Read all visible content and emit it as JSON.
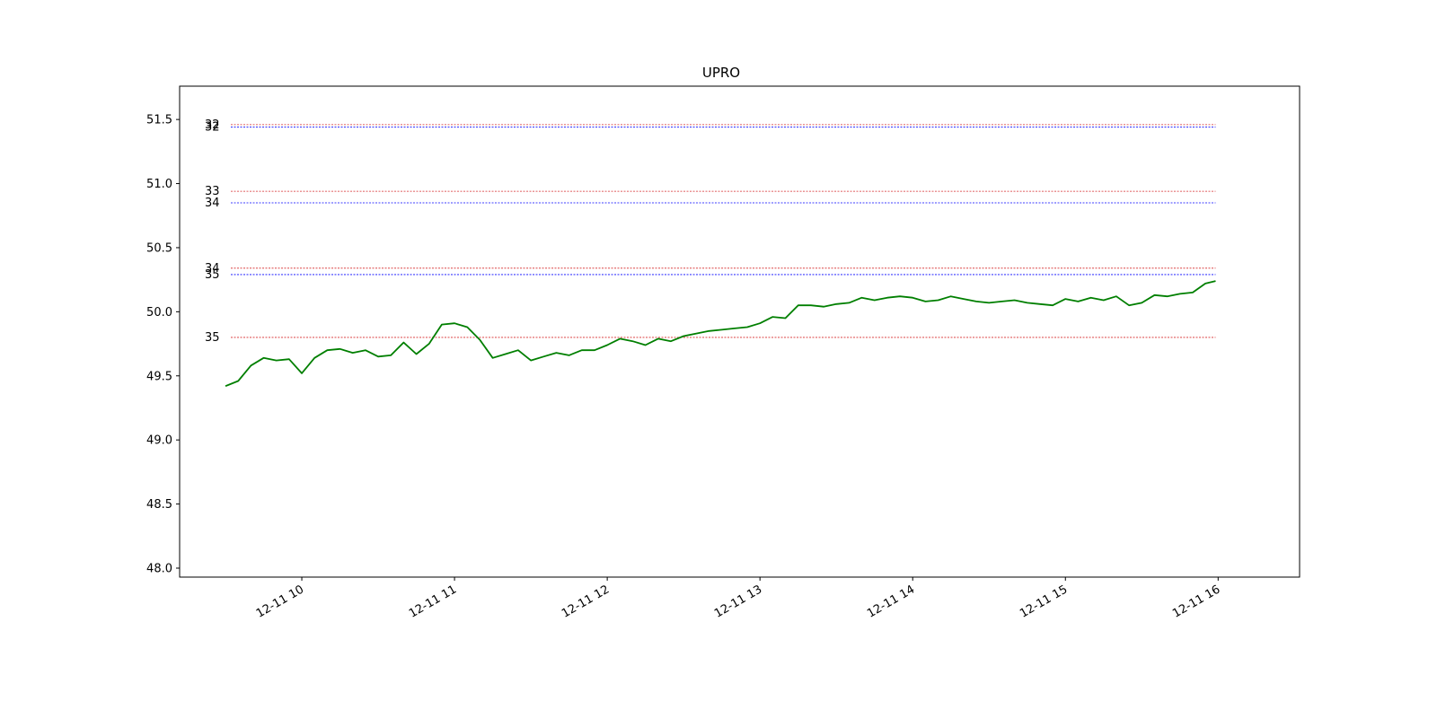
{
  "chart_data": {
    "type": "line",
    "title": "UPRO",
    "xlabel": "",
    "ylabel": "",
    "ylim": [
      47.93,
      51.76
    ],
    "xlim": [
      "2018-12-11 09:12",
      "2018-12-11 16:32"
    ],
    "x_tick_labels": [
      "12-11 10",
      "12-11 11",
      "12-11 12",
      "12-11 13",
      "12-11 14",
      "12-11 15",
      "12-11 16"
    ],
    "y_tick_labels": [
      "48.0",
      "48.5",
      "49.0",
      "49.5",
      "50.0",
      "50.5",
      "51.0",
      "51.5"
    ],
    "grid": false,
    "legend": "none",
    "line_color": "#007f00",
    "series": [
      {
        "x": [
          "2018-12-11 09:30",
          "2018-12-11 09:35",
          "2018-12-11 09:40",
          "2018-12-11 09:45",
          "2018-12-11 09:50",
          "2018-12-11 09:55",
          "2018-12-11 10:00",
          "2018-12-11 10:05",
          "2018-12-11 10:10",
          "2018-12-11 10:15",
          "2018-12-11 10:20",
          "2018-12-11 10:25",
          "2018-12-11 10:30",
          "2018-12-11 10:35",
          "2018-12-11 10:40",
          "2018-12-11 10:45",
          "2018-12-11 10:50",
          "2018-12-11 10:55",
          "2018-12-11 11:00",
          "2018-12-11 11:05",
          "2018-12-11 11:10",
          "2018-12-11 11:15",
          "2018-12-11 11:20",
          "2018-12-11 11:25",
          "2018-12-11 11:30",
          "2018-12-11 11:35",
          "2018-12-11 11:40",
          "2018-12-11 11:45",
          "2018-12-11 11:50",
          "2018-12-11 11:55",
          "2018-12-11 12:00",
          "2018-12-11 12:05",
          "2018-12-11 12:10",
          "2018-12-11 12:15",
          "2018-12-11 12:20",
          "2018-12-11 12:25",
          "2018-12-11 12:30",
          "2018-12-11 12:35",
          "2018-12-11 12:40",
          "2018-12-11 12:45",
          "2018-12-11 12:50",
          "2018-12-11 12:55",
          "2018-12-11 13:00",
          "2018-12-11 13:05",
          "2018-12-11 13:10",
          "2018-12-11 13:15",
          "2018-12-11 13:20",
          "2018-12-11 13:25",
          "2018-12-11 13:30",
          "2018-12-11 13:35",
          "2018-12-11 13:40",
          "2018-12-11 13:45",
          "2018-12-11 13:50",
          "2018-12-11 13:55",
          "2018-12-11 14:00",
          "2018-12-11 14:05",
          "2018-12-11 14:10",
          "2018-12-11 14:15",
          "2018-12-11 14:20",
          "2018-12-11 14:25",
          "2018-12-11 14:30",
          "2018-12-11 14:35",
          "2018-12-11 14:40",
          "2018-12-11 14:45",
          "2018-12-11 14:50",
          "2018-12-11 14:55",
          "2018-12-11 15:00",
          "2018-12-11 15:05",
          "2018-12-11 15:10",
          "2018-12-11 15:15",
          "2018-12-11 15:20",
          "2018-12-11 15:25",
          "2018-12-11 15:30",
          "2018-12-11 15:35",
          "2018-12-11 15:40",
          "2018-12-11 15:45",
          "2018-12-11 15:50",
          "2018-12-11 15:55",
          "2018-12-11 15:59"
        ],
        "y": [
          49.42,
          49.46,
          49.58,
          49.64,
          49.62,
          49.63,
          49.52,
          49.64,
          49.7,
          49.71,
          49.68,
          49.7,
          49.65,
          49.66,
          49.76,
          49.67,
          49.75,
          49.9,
          49.91,
          49.88,
          49.78,
          49.64,
          49.67,
          49.7,
          49.62,
          49.65,
          49.68,
          49.66,
          49.7,
          49.7,
          49.74,
          49.79,
          49.77,
          49.74,
          49.79,
          49.77,
          49.81,
          49.83,
          49.85,
          49.86,
          49.87,
          49.88,
          49.91,
          49.96,
          49.95,
          50.05,
          50.05,
          50.04,
          50.06,
          50.07,
          50.11,
          50.09,
          50.11,
          50.12,
          50.11,
          50.08,
          50.09,
          50.12,
          50.1,
          50.08,
          50.07,
          50.08,
          50.09,
          50.07,
          50.06,
          50.05,
          50.1,
          50.08,
          50.11,
          50.09,
          50.12,
          50.05,
          50.07,
          50.13,
          50.12,
          50.14,
          50.15,
          50.22,
          50.24
        ]
      }
    ],
    "levels": [
      {
        "label": "32",
        "value": 51.46,
        "color": "#d62728"
      },
      {
        "label": "32",
        "value": 51.44,
        "color": "#0000ff"
      },
      {
        "label": "33",
        "value": 50.94,
        "color": "#d62728"
      },
      {
        "label": "34",
        "value": 50.85,
        "color": "#0000ff"
      },
      {
        "label": "34",
        "value": 50.34,
        "color": "#d62728"
      },
      {
        "label": "35",
        "value": 50.29,
        "color": "#0000ff"
      },
      {
        "label": "35",
        "value": 49.8,
        "color": "#d62728"
      }
    ]
  }
}
